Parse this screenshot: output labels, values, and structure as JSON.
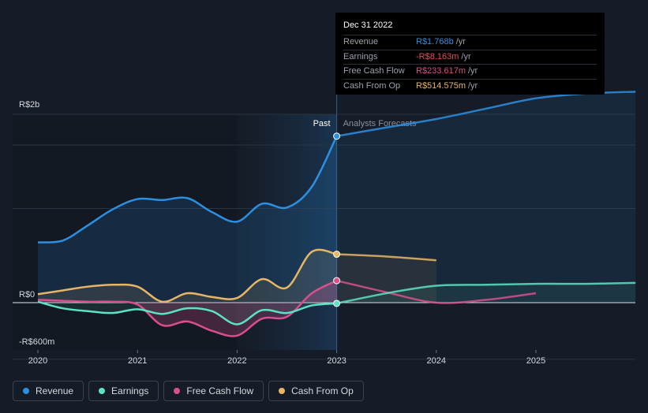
{
  "chart_data": {
    "type": "line",
    "x_ticks": [
      "2020",
      "2021",
      "2022",
      "2023",
      "2024",
      "2025"
    ],
    "y_tick_labels": [
      "R$2b",
      "R$0",
      "-R$600m"
    ],
    "ylim": [
      -600,
      2000
    ],
    "y_unit": "R$ millions",
    "past_label": "Past",
    "forecast_label": "Analysts Forecasts",
    "divider_date": 2023.0,
    "series": [
      {
        "name": "Revenue",
        "color": "#2d8fe0",
        "points": [
          [
            2020.0,
            640
          ],
          [
            2020.25,
            660
          ],
          [
            2020.5,
            820
          ],
          [
            2020.75,
            990
          ],
          [
            2021.0,
            1100
          ],
          [
            2021.25,
            1090
          ],
          [
            2021.5,
            1110
          ],
          [
            2021.75,
            960
          ],
          [
            2022.0,
            860
          ],
          [
            2022.25,
            1050
          ],
          [
            2022.5,
            1010
          ],
          [
            2022.75,
            1230
          ],
          [
            2023.0,
            1768
          ]
        ],
        "forecast": [
          [
            2023.0,
            1768
          ],
          [
            2023.5,
            1860
          ],
          [
            2024.0,
            1950
          ],
          [
            2024.5,
            2060
          ],
          [
            2025.0,
            2170
          ],
          [
            2025.5,
            2220
          ],
          [
            2026.0,
            2240
          ]
        ]
      },
      {
        "name": "Earnings",
        "color": "#5ee2c4",
        "points": [
          [
            2020.0,
            10
          ],
          [
            2020.25,
            -60
          ],
          [
            2020.5,
            -90
          ],
          [
            2020.75,
            -110
          ],
          [
            2021.0,
            -70
          ],
          [
            2021.25,
            -120
          ],
          [
            2021.5,
            -60
          ],
          [
            2021.75,
            -90
          ],
          [
            2022.0,
            -230
          ],
          [
            2022.25,
            -80
          ],
          [
            2022.5,
            -110
          ],
          [
            2022.75,
            -30
          ],
          [
            2023.0,
            -8.163
          ]
        ],
        "forecast": [
          [
            2023.0,
            -8.163
          ],
          [
            2023.5,
            100
          ],
          [
            2024.0,
            180
          ],
          [
            2024.5,
            190
          ],
          [
            2025.0,
            200
          ],
          [
            2025.5,
            200
          ],
          [
            2026.0,
            210
          ]
        ]
      },
      {
        "name": "Free Cash Flow",
        "color": "#d94f8e",
        "points": [
          [
            2020.0,
            30
          ],
          [
            2020.25,
            20
          ],
          [
            2020.5,
            10
          ],
          [
            2020.75,
            10
          ],
          [
            2021.0,
            -20
          ],
          [
            2021.25,
            -240
          ],
          [
            2021.5,
            -200
          ],
          [
            2021.75,
            -300
          ],
          [
            2022.0,
            -350
          ],
          [
            2022.25,
            -170
          ],
          [
            2022.5,
            -150
          ],
          [
            2022.75,
            100
          ],
          [
            2023.0,
            233.617
          ]
        ],
        "forecast": [
          [
            2023.0,
            233.617
          ],
          [
            2023.5,
            110
          ],
          [
            2024.0,
            0
          ],
          [
            2024.5,
            30
          ],
          [
            2025.0,
            100
          ]
        ]
      },
      {
        "name": "Cash From Op",
        "color": "#e7b567",
        "points": [
          [
            2020.0,
            90
          ],
          [
            2020.25,
            130
          ],
          [
            2020.5,
            170
          ],
          [
            2020.75,
            190
          ],
          [
            2021.0,
            170
          ],
          [
            2021.25,
            10
          ],
          [
            2021.5,
            100
          ],
          [
            2021.75,
            60
          ],
          [
            2022.0,
            50
          ],
          [
            2022.25,
            250
          ],
          [
            2022.5,
            160
          ],
          [
            2022.75,
            540
          ],
          [
            2023.0,
            514.575
          ]
        ],
        "forecast": [
          [
            2023.0,
            514.575
          ],
          [
            2023.5,
            490
          ],
          [
            2024.0,
            450
          ]
        ]
      }
    ]
  },
  "tooltip": {
    "date": "Dec 31 2022",
    "rows": [
      {
        "label": "Revenue",
        "value": "R$1.768b",
        "unit": "/yr",
        "color": "#2d8fe0"
      },
      {
        "label": "Earnings",
        "value": "-R$8.163m",
        "unit": "/yr",
        "color": "#e74c5c"
      },
      {
        "label": "Free Cash Flow",
        "value": "R$233.617m",
        "unit": "/yr",
        "color": "#d94f8e"
      },
      {
        "label": "Cash From Op",
        "value": "R$514.575m",
        "unit": "/yr",
        "color": "#e7b567"
      }
    ]
  },
  "legend": [
    {
      "label": "Revenue",
      "color": "#2d8fe0"
    },
    {
      "label": "Earnings",
      "color": "#5ee2c4"
    },
    {
      "label": "Free Cash Flow",
      "color": "#d94f8e"
    },
    {
      "label": "Cash From Op",
      "color": "#e7b567"
    }
  ]
}
